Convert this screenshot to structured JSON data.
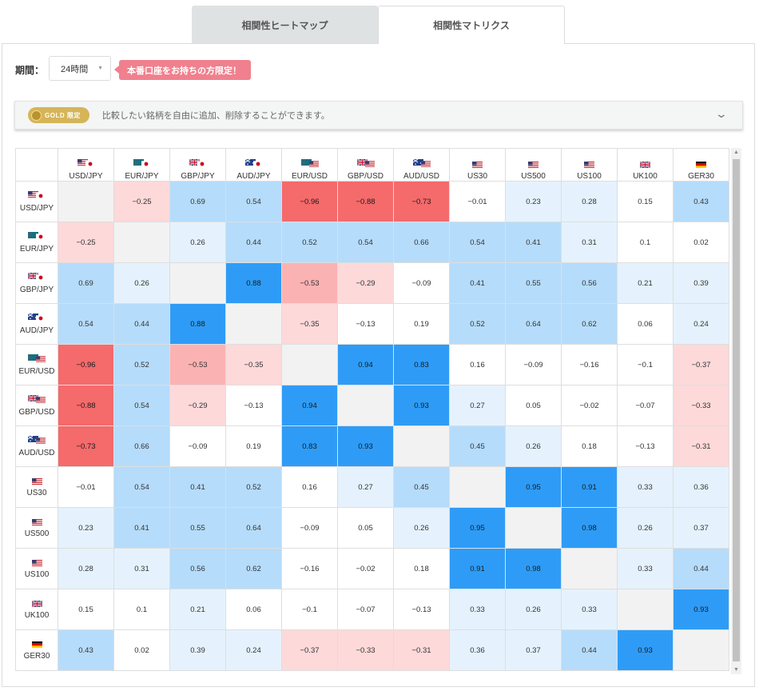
{
  "tabs": [
    {
      "label": "相関性ヒートマップ",
      "active": false
    },
    {
      "label": "相関性マトリクス",
      "active": true
    }
  ],
  "period": {
    "label": "期間：",
    "value": "24時間"
  },
  "badge": "本番口座をお持ちの方限定！",
  "gold": {
    "badge": "GOLD 限定",
    "text": "比較したい銘柄を自由に追加、削除することができます。"
  },
  "colors": {
    "strong_pos": "#2e9cf7",
    "pos": "#b6dcfb",
    "weak_pos": "#e5f2fd",
    "strong_neg": "#f56a6b",
    "neg": "#fbb2b3",
    "weak_neg": "#fdd9da",
    "diag": "#f2f2f2"
  },
  "symbols": [
    {
      "name": "USD/JPY",
      "flags": [
        "us",
        "jp"
      ]
    },
    {
      "name": "EUR/JPY",
      "flags": [
        "eu",
        "jp"
      ]
    },
    {
      "name": "GBP/JPY",
      "flags": [
        "gb",
        "jp"
      ]
    },
    {
      "name": "AUD/JPY",
      "flags": [
        "au",
        "jp"
      ]
    },
    {
      "name": "EUR/USD",
      "flags": [
        "eu",
        "us"
      ]
    },
    {
      "name": "GBP/USD",
      "flags": [
        "gb",
        "us"
      ]
    },
    {
      "name": "AUD/USD",
      "flags": [
        "au",
        "us"
      ]
    },
    {
      "name": "US30",
      "flags": [
        "us"
      ]
    },
    {
      "name": "US500",
      "flags": [
        "us"
      ]
    },
    {
      "name": "US100",
      "flags": [
        "us"
      ]
    },
    {
      "name": "UK100",
      "flags": [
        "gb"
      ]
    },
    {
      "name": "GER30",
      "flags": [
        "de"
      ]
    }
  ],
  "matrix": [
    [
      null,
      -0.25,
      0.69,
      0.54,
      -0.96,
      -0.88,
      -0.73,
      -0.01,
      0.23,
      0.28,
      0.15,
      0.43
    ],
    [
      -0.25,
      null,
      0.26,
      0.44,
      0.52,
      0.54,
      0.66,
      0.54,
      0.41,
      0.31,
      0.1,
      0.02
    ],
    [
      0.69,
      0.26,
      null,
      0.88,
      -0.53,
      -0.29,
      -0.09,
      0.41,
      0.55,
      0.56,
      0.21,
      0.39
    ],
    [
      0.54,
      0.44,
      0.88,
      null,
      -0.35,
      -0.13,
      0.19,
      0.52,
      0.64,
      0.62,
      0.06,
      0.24
    ],
    [
      -0.96,
      0.52,
      -0.53,
      -0.35,
      null,
      0.94,
      0.83,
      0.16,
      -0.09,
      -0.16,
      -0.1,
      -0.37
    ],
    [
      -0.88,
      0.54,
      -0.29,
      -0.13,
      0.94,
      null,
      0.93,
      0.27,
      0.05,
      -0.02,
      -0.07,
      -0.33
    ],
    [
      -0.73,
      0.66,
      -0.09,
      0.19,
      0.83,
      0.93,
      null,
      0.45,
      0.26,
      0.18,
      -0.13,
      -0.31
    ],
    [
      -0.01,
      0.54,
      0.41,
      0.52,
      0.16,
      0.27,
      0.45,
      null,
      0.95,
      0.91,
      0.33,
      0.36
    ],
    [
      0.23,
      0.41,
      0.55,
      0.64,
      -0.09,
      0.05,
      0.26,
      0.95,
      null,
      0.98,
      0.26,
      0.37
    ],
    [
      0.28,
      0.31,
      0.56,
      0.62,
      -0.16,
      -0.02,
      0.18,
      0.91,
      0.98,
      null,
      0.33,
      0.44
    ],
    [
      0.15,
      0.1,
      0.21,
      0.06,
      -0.1,
      -0.07,
      -0.13,
      0.33,
      0.26,
      0.33,
      null,
      0.93
    ],
    [
      0.43,
      0.02,
      0.39,
      0.24,
      -0.37,
      -0.33,
      -0.31,
      0.36,
      0.37,
      0.44,
      0.93,
      null
    ]
  ]
}
